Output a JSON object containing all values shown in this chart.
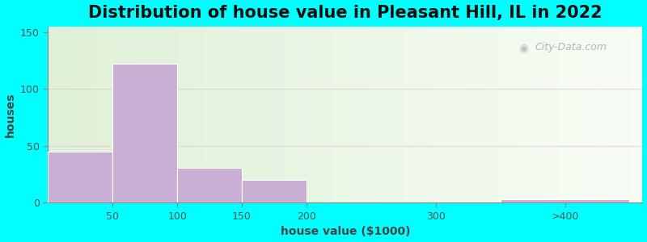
{
  "title": "Distribution of house value in Pleasant Hill, IL in 2022",
  "xlabel": "house value ($1000)",
  "ylabel": "houses",
  "bar_color": "#c9afd4",
  "bar_edgecolor": "#c9afd4",
  "background_outer": "#00ffff",
  "yticks": [
    0,
    50,
    100,
    150
  ],
  "ylim": [
    0,
    155
  ],
  "bar_lefts": [
    0,
    50,
    100,
    150,
    225,
    350
  ],
  "bar_widths": [
    50,
    50,
    50,
    50,
    75,
    100
  ],
  "bar_heights": [
    45,
    122,
    31,
    20,
    0,
    3
  ],
  "watermark": "City-Data.com",
  "title_fontsize": 15,
  "axis_label_fontsize": 10,
  "tick_fontsize": 9
}
